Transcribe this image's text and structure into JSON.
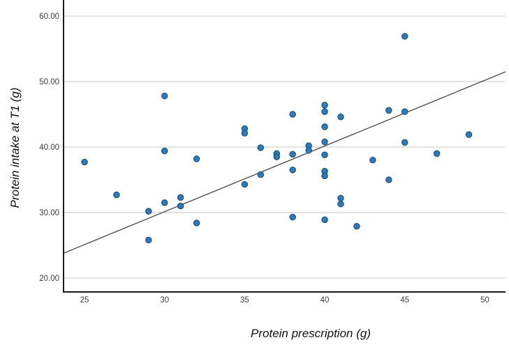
{
  "figure": {
    "background": "#ffffff"
  },
  "chart_data": {
    "type": "scatter",
    "title": "",
    "xlabel": "Protein prescription (g)",
    "ylabel": "Protein intake at T1 (g)",
    "xlim": [
      23.69,
      51.29
    ],
    "ylim": [
      17.87,
      62.45
    ],
    "x_ticks": [
      25,
      30,
      35,
      40,
      45,
      50
    ],
    "y_ticks": [
      20,
      30,
      40,
      50,
      60
    ],
    "y_tick_labels": [
      "20.00",
      "30.00",
      "40.00",
      "50.00",
      "60.00"
    ],
    "grid": "horizontal-only",
    "legend": "none",
    "points": [
      [
        25,
        37.7
      ],
      [
        27,
        32.7
      ],
      [
        29,
        30.2
      ],
      [
        29,
        25.8
      ],
      [
        30,
        47.8
      ],
      [
        30,
        39.4
      ],
      [
        30,
        31.5
      ],
      [
        31,
        32.3
      ],
      [
        31,
        31.0
      ],
      [
        32,
        38.2
      ],
      [
        32,
        28.4
      ],
      [
        35,
        42.8
      ],
      [
        35,
        42.1
      ],
      [
        35,
        34.3
      ],
      [
        36,
        39.9
      ],
      [
        36,
        35.8
      ],
      [
        37,
        39.0
      ],
      [
        37,
        38.5
      ],
      [
        38,
        45.0
      ],
      [
        38,
        38.9
      ],
      [
        38,
        36.5
      ],
      [
        38,
        29.3
      ],
      [
        39,
        40.2
      ],
      [
        39,
        39.5
      ],
      [
        40,
        46.4
      ],
      [
        40,
        45.4
      ],
      [
        40,
        43.1
      ],
      [
        40,
        40.8
      ],
      [
        40,
        38.8
      ],
      [
        40,
        36.3
      ],
      [
        40,
        35.6
      ],
      [
        40,
        28.9
      ],
      [
        41,
        44.6
      ],
      [
        41,
        32.2
      ],
      [
        41,
        31.3
      ],
      [
        42,
        27.9
      ],
      [
        43,
        38.0
      ],
      [
        44,
        45.6
      ],
      [
        44,
        35.0
      ],
      [
        45,
        56.9
      ],
      [
        45,
        45.4
      ],
      [
        45,
        40.7
      ],
      [
        47,
        39.0
      ],
      [
        49,
        41.9
      ]
    ],
    "fit_line": {
      "x1": 23.7,
      "y1": 23.8,
      "x2": 51.3,
      "y2": 51.5
    },
    "colors": {
      "point_fill": "#2d7cba",
      "point_stroke": "#1b4e79",
      "gridline": "#c6c6c6",
      "axis_line": "#1a1a1a",
      "fit_line": "#3a3a3a",
      "tick_label": "#3d3d3d"
    }
  }
}
